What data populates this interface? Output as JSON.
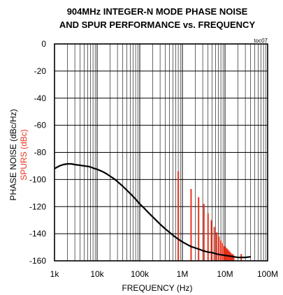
{
  "chart_data": {
    "type": "line",
    "title_line1": "904MHz INTEGER-N MODE PHASE NOISE",
    "title_line2": "AND SPUR PERFORMANCE vs. FREQUENCY",
    "code": "toc07",
    "xlabel": "FREQUENCY (Hz)",
    "ylabel_primary": "PHASE NOISE (dBc/Hz)",
    "ylabel_secondary": "SPURS (dBc)",
    "x_scale": "log",
    "xlim": [
      1000,
      100000000
    ],
    "ylim": [
      -160,
      0
    ],
    "grid": true,
    "x_ticks": [
      {
        "value": 1000,
        "label": "1k"
      },
      {
        "value": 10000,
        "label": "10k"
      },
      {
        "value": 100000,
        "label": "100k"
      },
      {
        "value": 1000000,
        "label": "1M"
      },
      {
        "value": 10000000,
        "label": "10M"
      },
      {
        "value": 100000000,
        "label": "100M"
      }
    ],
    "y_ticks": [
      {
        "value": 0,
        "label": "0"
      },
      {
        "value": -20,
        "label": "-20"
      },
      {
        "value": -40,
        "label": "-40"
      },
      {
        "value": -60,
        "label": "-60"
      },
      {
        "value": -80,
        "label": "-80"
      },
      {
        "value": -100,
        "label": "-100"
      },
      {
        "value": -120,
        "label": "-120"
      },
      {
        "value": -140,
        "label": "-140"
      },
      {
        "value": -160,
        "label": "-160"
      }
    ],
    "series": [
      {
        "color": "#000000",
        "points": [
          [
            1000,
            -92
          ],
          [
            1300,
            -90
          ],
          [
            1600,
            -89
          ],
          [
            2000,
            -88.5
          ],
          [
            2500,
            -88.5
          ],
          [
            3000,
            -89
          ],
          [
            4000,
            -89.5
          ],
          [
            5000,
            -90
          ],
          [
            6500,
            -90.5
          ],
          [
            8000,
            -91.5
          ],
          [
            10000,
            -92.5
          ],
          [
            13000,
            -94
          ],
          [
            16000,
            -95.5
          ],
          [
            20000,
            -97.5
          ],
          [
            25000,
            -99.5
          ],
          [
            30000,
            -101.5
          ],
          [
            40000,
            -105
          ],
          [
            50000,
            -108
          ],
          [
            65000,
            -111.5
          ],
          [
            80000,
            -114.5
          ],
          [
            100000,
            -118
          ],
          [
            130000,
            -121.5
          ],
          [
            160000,
            -124.5
          ],
          [
            200000,
            -127.5
          ],
          [
            250000,
            -130.5
          ],
          [
            300000,
            -133
          ],
          [
            400000,
            -136.5
          ],
          [
            500000,
            -139
          ],
          [
            650000,
            -142
          ],
          [
            800000,
            -144
          ],
          [
            1000000,
            -146
          ],
          [
            1300000,
            -148
          ],
          [
            1600000,
            -149.5
          ],
          [
            2000000,
            -150.5
          ],
          [
            2500000,
            -151.5
          ],
          [
            3000000,
            -152.5
          ],
          [
            4000000,
            -153.5
          ],
          [
            5000000,
            -154
          ],
          [
            6500000,
            -155
          ],
          [
            8000000,
            -155.5
          ],
          [
            10000000,
            -156
          ],
          [
            13000000,
            -156.5
          ],
          [
            16000000,
            -157
          ],
          [
            20000000,
            -157.5
          ],
          [
            25000000,
            -157.5
          ],
          [
            30000000,
            -157.5
          ],
          [
            40000000,
            -157
          ]
        ]
      },
      {
        "color": "#e8321c",
        "spurs": [
          [
            800000,
            -94
          ],
          [
            1600000,
            -107
          ],
          [
            2400000,
            -113
          ],
          [
            3200000,
            -118
          ],
          [
            4000000,
            -125
          ],
          [
            4800000,
            -130
          ],
          [
            5600000,
            -135
          ],
          [
            6400000,
            -139
          ],
          [
            7200000,
            -142
          ],
          [
            8000000,
            -145
          ],
          [
            8800000,
            -147
          ],
          [
            9600000,
            -149
          ],
          [
            10400000,
            -150
          ],
          [
            11200000,
            -151
          ],
          [
            12000000,
            -152
          ],
          [
            12800000,
            -153
          ],
          [
            13600000,
            -154
          ],
          [
            14400000,
            -155
          ],
          [
            15200000,
            -155
          ],
          [
            16000000,
            -156
          ],
          [
            24000000,
            -155
          ]
        ]
      }
    ],
    "colors": {
      "phase_noise": "#000000",
      "spurs": "#e8321c",
      "grid": "#000000"
    }
  }
}
